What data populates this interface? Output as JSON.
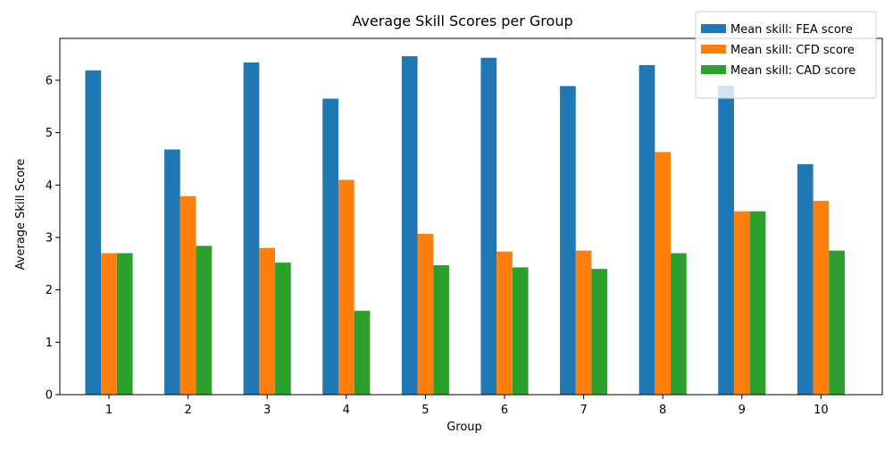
{
  "chart_data": {
    "type": "bar",
    "title": "Average Skill Scores per Group",
    "xlabel": "Group",
    "ylabel": "Average Skill Score",
    "categories": [
      "1",
      "2",
      "3",
      "4",
      "5",
      "6",
      "7",
      "8",
      "9",
      "10"
    ],
    "ylim": [
      0,
      6.8
    ],
    "yticks": [
      "0",
      "1",
      "2",
      "3",
      "4",
      "5",
      "6"
    ],
    "grid": false,
    "legend_position": "top-right",
    "series": [
      {
        "name": "Mean skill: FEA score",
        "color": "#1f77b4",
        "values": [
          6.19,
          4.68,
          6.34,
          5.65,
          6.46,
          6.43,
          5.89,
          6.29,
          5.9,
          4.4
        ]
      },
      {
        "name": "Mean skill: CFD score",
        "color": "#ff7f0e",
        "values": [
          2.7,
          3.79,
          2.8,
          4.1,
          3.07,
          2.73,
          2.75,
          4.63,
          3.5,
          3.7
        ]
      },
      {
        "name": "Mean skill: CAD score",
        "color": "#2ca02c",
        "values": [
          2.7,
          2.84,
          2.52,
          1.6,
          2.47,
          2.43,
          2.4,
          2.7,
          3.5,
          2.75
        ]
      }
    ]
  }
}
